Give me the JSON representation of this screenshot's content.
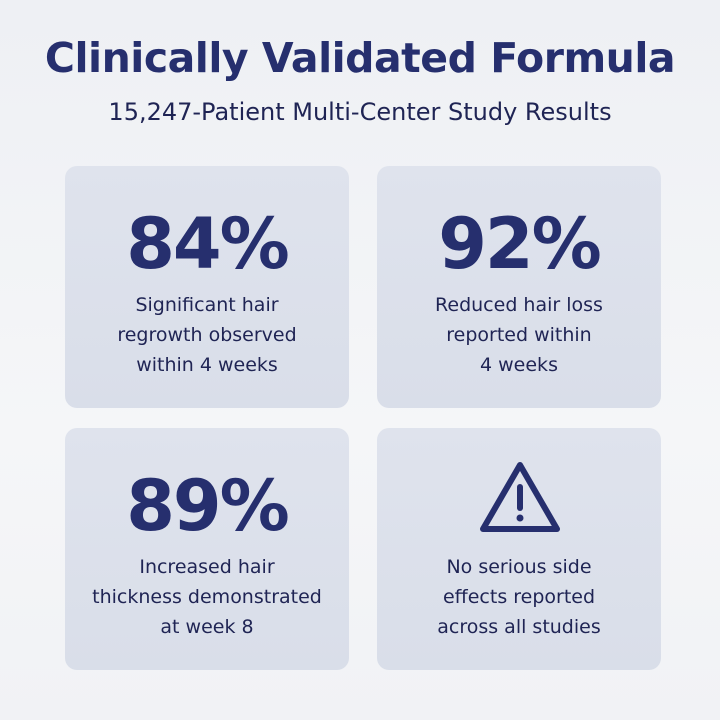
{
  "header": {
    "title": "Clinically Validated Formula",
    "subtitle": "15,247-Patient Multi-Center Study Results"
  },
  "colors": {
    "accent": "#262f6e",
    "text": "#1f2454",
    "card": "#dde2ed",
    "background": "#f3f4f7"
  },
  "stats": [
    {
      "value": "84%",
      "lines": [
        "Significant hair",
        "regrowth observed",
        "within 4 weeks"
      ]
    },
    {
      "value": "92%",
      "lines": [
        "Reduced hair loss",
        "reported within",
        "4 weeks"
      ]
    },
    {
      "value": "89%",
      "lines": [
        "Increased hair",
        "thickness demonstrated",
        "at week 8"
      ]
    },
    {
      "icon": "warning-triangle-icon",
      "lines": [
        "No serious side",
        "effects reported",
        "across all studies"
      ]
    }
  ]
}
